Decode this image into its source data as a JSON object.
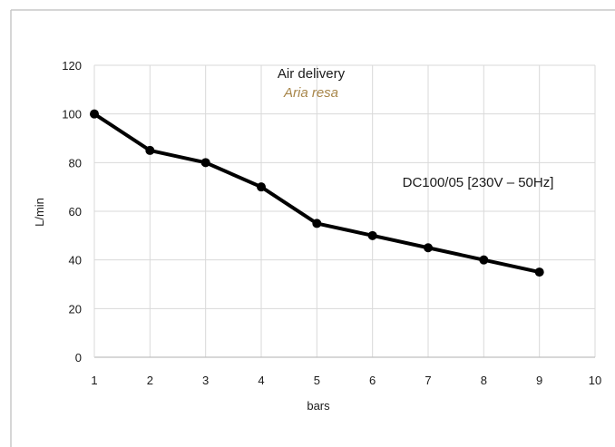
{
  "chart_data": {
    "type": "line",
    "title": "Air delivery",
    "subtitle": "Aria resa",
    "annotation": "DC100/05 [230V – 50Hz]",
    "xlabel": "bars",
    "ylabel": "L/min",
    "xlim": [
      1,
      10
    ],
    "ylim": [
      0,
      120
    ],
    "x_ticks": [
      "1",
      "2",
      "3",
      "4",
      "5",
      "6",
      "7",
      "8",
      "9",
      "10"
    ],
    "y_ticks": [
      "0",
      "20",
      "40",
      "60",
      "80",
      "100",
      "120"
    ],
    "grid": true,
    "series": [
      {
        "x": [
          1,
          2,
          3,
          4,
          5,
          6,
          7,
          8,
          9
        ],
        "y": [
          100,
          85,
          80,
          70,
          55,
          50,
          45,
          40,
          35
        ]
      }
    ],
    "colors": {
      "line": "#000000",
      "title": "#1a1a1a",
      "subtitle": "#a8864a",
      "grid": "#d9d9d9",
      "frame": "#c8c8c8",
      "axis": "#bfbfbf"
    }
  }
}
